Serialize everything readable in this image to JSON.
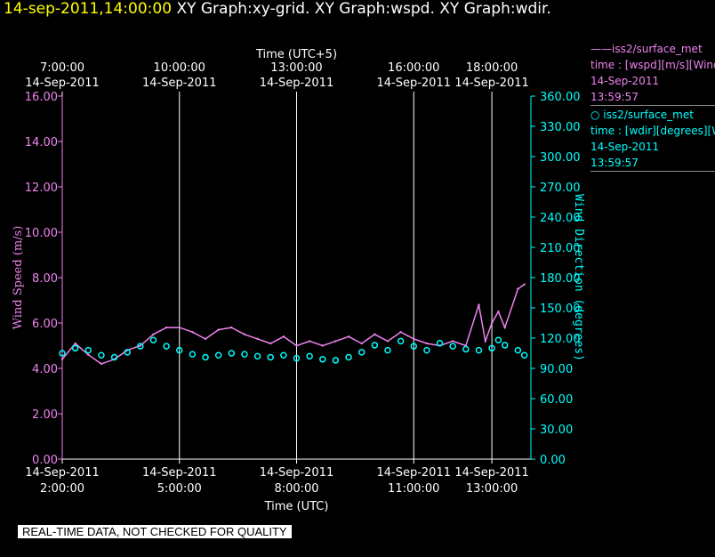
{
  "header": {
    "timestamp": "14-sep-2011,14:00:00",
    "graphs": "XY Graph:xy-grid.  XY Graph:wspd.  XY Graph:wdir."
  },
  "legend": [
    {
      "series": "iss2/surface_met",
      "line1": "time : [wspd][m/s][Wind",
      "date": "14-Sep-2011",
      "time": "13:59:57",
      "marker": "——"
    },
    {
      "series": "iss2/surface_met",
      "line1": "time : [wdir][degrees][W",
      "date": "14-Sep-2011",
      "time": "13:59:57",
      "marker": "○ "
    }
  ],
  "note": "REAL-TIME DATA, NOT CHECKED FOR QUALITY",
  "colors": {
    "wspd": "#ee82ee",
    "wdir": "#00ffff",
    "header_time": "#ffff00",
    "grid": "#ffffff"
  },
  "chart_data": {
    "type": "line",
    "top_axis_title": "Time (UTC+5)",
    "bottom_axis_title": "Time (UTC)",
    "left_axis_title": "Wind Speed (m/s)",
    "right_axis_title": "Wind Direction (degrees)",
    "top_ticks": [
      {
        "x": "2:00",
        "time": "7:00:00",
        "date": "14-Sep-2011"
      },
      {
        "x": "5:00",
        "time": "10:00:00",
        "date": "14-Sep-2011"
      },
      {
        "x": "8:00",
        "time": "13:00:00",
        "date": "14-Sep-2011"
      },
      {
        "x": "11:00",
        "time": "16:00:00",
        "date": "14-Sep-2011"
      },
      {
        "x": "13:00",
        "time": "18:00:00",
        "date": "14-Sep-2011"
      }
    ],
    "bottom_ticks": [
      {
        "x": "2:00",
        "date": "14-Sep-2011",
        "time": "2:00:00"
      },
      {
        "x": "5:00",
        "date": "14-Sep-2011",
        "time": "5:00:00"
      },
      {
        "x": "8:00",
        "date": "14-Sep-2011",
        "time": "8:00:00"
      },
      {
        "x": "11:00",
        "date": "14-Sep-2011",
        "time": "11:00:00"
      },
      {
        "x": "13:00",
        "date": "14-Sep-2011",
        "time": "13:00:00"
      }
    ],
    "xlim": [
      "2:00",
      "14:00"
    ],
    "y_left_ticks": [
      "0.00",
      "2.00",
      "4.00",
      "6.00",
      "8.00",
      "10.00",
      "12.00",
      "14.00",
      "16.00"
    ],
    "y_left_lim": [
      0,
      16
    ],
    "y_right_ticks": [
      "0.00",
      "30.00",
      "60.00",
      "90.00",
      "120.00",
      "150.00",
      "180.00",
      "210.00",
      "240.00",
      "270.00",
      "300.00",
      "330.00",
      "360.00"
    ],
    "y_right_lim": [
      0,
      360
    ],
    "grid": "vertical lines at bottom ticks",
    "series": [
      {
        "name": "iss2/surface_met wspd",
        "axis": "left",
        "style": "line",
        "x": [
          "2:00",
          "2:20",
          "2:40",
          "3:00",
          "3:20",
          "3:40",
          "4:00",
          "4:20",
          "4:40",
          "5:00",
          "5:20",
          "5:40",
          "6:00",
          "6:20",
          "6:40",
          "7:00",
          "7:20",
          "7:40",
          "8:00",
          "8:20",
          "8:40",
          "9:00",
          "9:20",
          "9:40",
          "10:00",
          "10:20",
          "10:40",
          "11:00",
          "11:20",
          "11:40",
          "12:00",
          "12:20",
          "12:40",
          "12:50",
          "13:00",
          "13:10",
          "13:20",
          "13:40",
          "13:50"
        ],
        "y": [
          4.4,
          5.1,
          4.6,
          4.2,
          4.4,
          4.8,
          5.0,
          5.5,
          5.8,
          5.8,
          5.6,
          5.3,
          5.7,
          5.8,
          5.5,
          5.3,
          5.1,
          5.4,
          5.0,
          5.2,
          5.0,
          5.2,
          5.4,
          5.1,
          5.5,
          5.2,
          5.6,
          5.3,
          5.1,
          5.0,
          5.2,
          5.0,
          6.8,
          5.2,
          6.0,
          6.5,
          5.8,
          7.5,
          7.7
        ]
      },
      {
        "name": "iss2/surface_met wdir",
        "axis": "right",
        "style": "marker",
        "x": [
          "2:00",
          "2:20",
          "2:40",
          "3:00",
          "3:20",
          "3:40",
          "4:00",
          "4:20",
          "4:40",
          "5:00",
          "5:20",
          "5:40",
          "6:00",
          "6:20",
          "6:40",
          "7:00",
          "7:20",
          "7:40",
          "8:00",
          "8:20",
          "8:40",
          "9:00",
          "9:20",
          "9:40",
          "10:00",
          "10:20",
          "10:40",
          "11:00",
          "11:20",
          "11:40",
          "12:00",
          "12:20",
          "12:40",
          "13:00",
          "13:10",
          "13:20",
          "13:40",
          "13:50"
        ],
        "y": [
          105,
          110,
          108,
          103,
          101,
          106,
          112,
          118,
          112,
          108,
          104,
          101,
          103,
          105,
          104,
          102,
          101,
          103,
          100,
          102,
          99,
          98,
          101,
          106,
          113,
          108,
          117,
          112,
          108,
          115,
          112,
          109,
          108,
          110,
          118,
          113,
          108,
          103
        ]
      }
    ]
  }
}
